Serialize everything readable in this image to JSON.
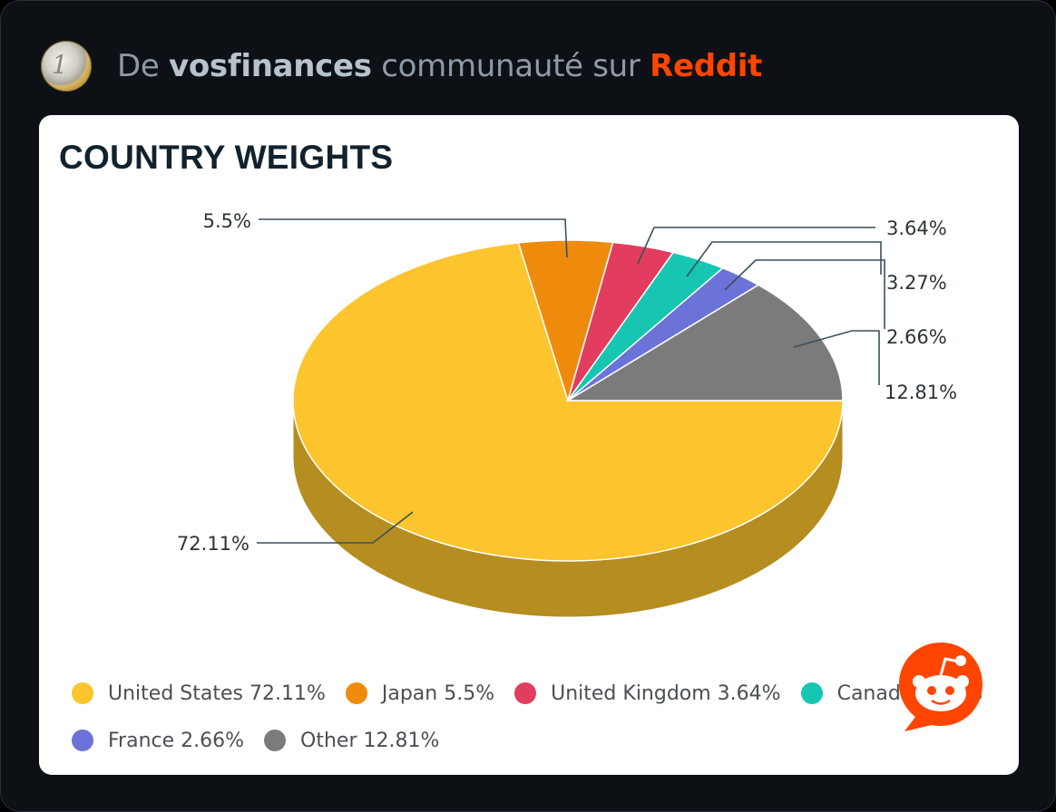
{
  "header": {
    "prefix": "De",
    "community": "vosfinances",
    "middle": "communauté sur",
    "platform": "Reddit",
    "icon": "euro-coin-icon"
  },
  "colors": {
    "United States": "#fcc42d",
    "Japan": "#ef8b0c",
    "United Kingdom": "#e23d5e",
    "Canada": "#16c6b3",
    "France": "#6b73d8",
    "Other": "#7b7b7b",
    "reddit": "#ff4500"
  },
  "chart_data": {
    "type": "pie",
    "title": "COUNTRY WEIGHTS",
    "legend_position": "bottom",
    "slices": [
      {
        "name": "United States",
        "value": 72.11,
        "label": "72.11%",
        "legend": "United States 72.11%"
      },
      {
        "name": "Japan",
        "value": 5.5,
        "label": "5.5%",
        "legend": "Japan 5.5%"
      },
      {
        "name": "United Kingdom",
        "value": 3.64,
        "label": "3.64%",
        "legend": "United Kingdom 3.64%"
      },
      {
        "name": "Canada",
        "value": 3.27,
        "label": "3.27%",
        "legend": "Canada 3.27%"
      },
      {
        "name": "France",
        "value": 2.66,
        "label": "2.66%",
        "legend": "France 2.66%"
      },
      {
        "name": "Other",
        "value": 12.81,
        "label": "12.81%",
        "legend": "Other 12.81%"
      }
    ]
  }
}
